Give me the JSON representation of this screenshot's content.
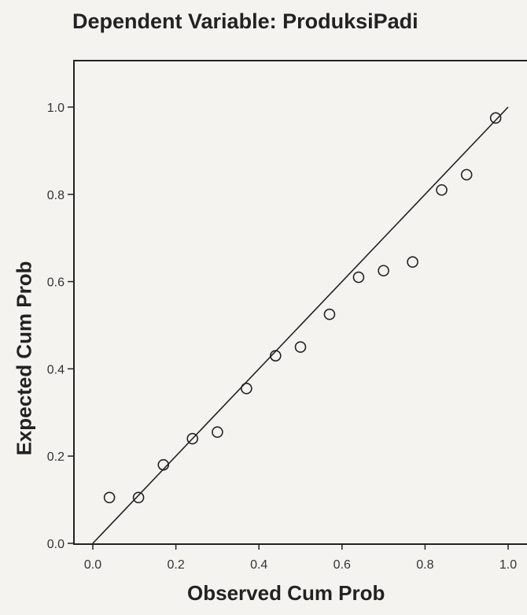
{
  "chart_data": {
    "type": "scatter",
    "title": "Dependent Variable: ProduksiPadi",
    "xlabel": "Observed Cum Prob",
    "ylabel": "Expected Cum Prob",
    "xlim": [
      0.0,
      1.0
    ],
    "ylim": [
      0.0,
      1.0
    ],
    "xticks": [
      "0.0",
      "0.2",
      "0.4",
      "0.6",
      "0.8",
      "1.0"
    ],
    "yticks": [
      "0.0",
      "0.2",
      "0.4",
      "0.6",
      "0.8",
      "1.0"
    ],
    "grid": false,
    "reference_line": {
      "from": [
        0,
        0
      ],
      "to": [
        1,
        1
      ]
    },
    "series": [
      {
        "marker": "circle-open",
        "points": [
          {
            "x": 0.04,
            "y": 0.105
          },
          {
            "x": 0.11,
            "y": 0.105
          },
          {
            "x": 0.17,
            "y": 0.18
          },
          {
            "x": 0.24,
            "y": 0.24
          },
          {
            "x": 0.3,
            "y": 0.255
          },
          {
            "x": 0.37,
            "y": 0.355
          },
          {
            "x": 0.44,
            "y": 0.43
          },
          {
            "x": 0.5,
            "y": 0.45
          },
          {
            "x": 0.57,
            "y": 0.525
          },
          {
            "x": 0.64,
            "y": 0.61
          },
          {
            "x": 0.7,
            "y": 0.625
          },
          {
            "x": 0.77,
            "y": 0.645
          },
          {
            "x": 0.84,
            "y": 0.81
          },
          {
            "x": 0.9,
            "y": 0.845
          },
          {
            "x": 0.97,
            "y": 0.975
          }
        ]
      }
    ]
  }
}
